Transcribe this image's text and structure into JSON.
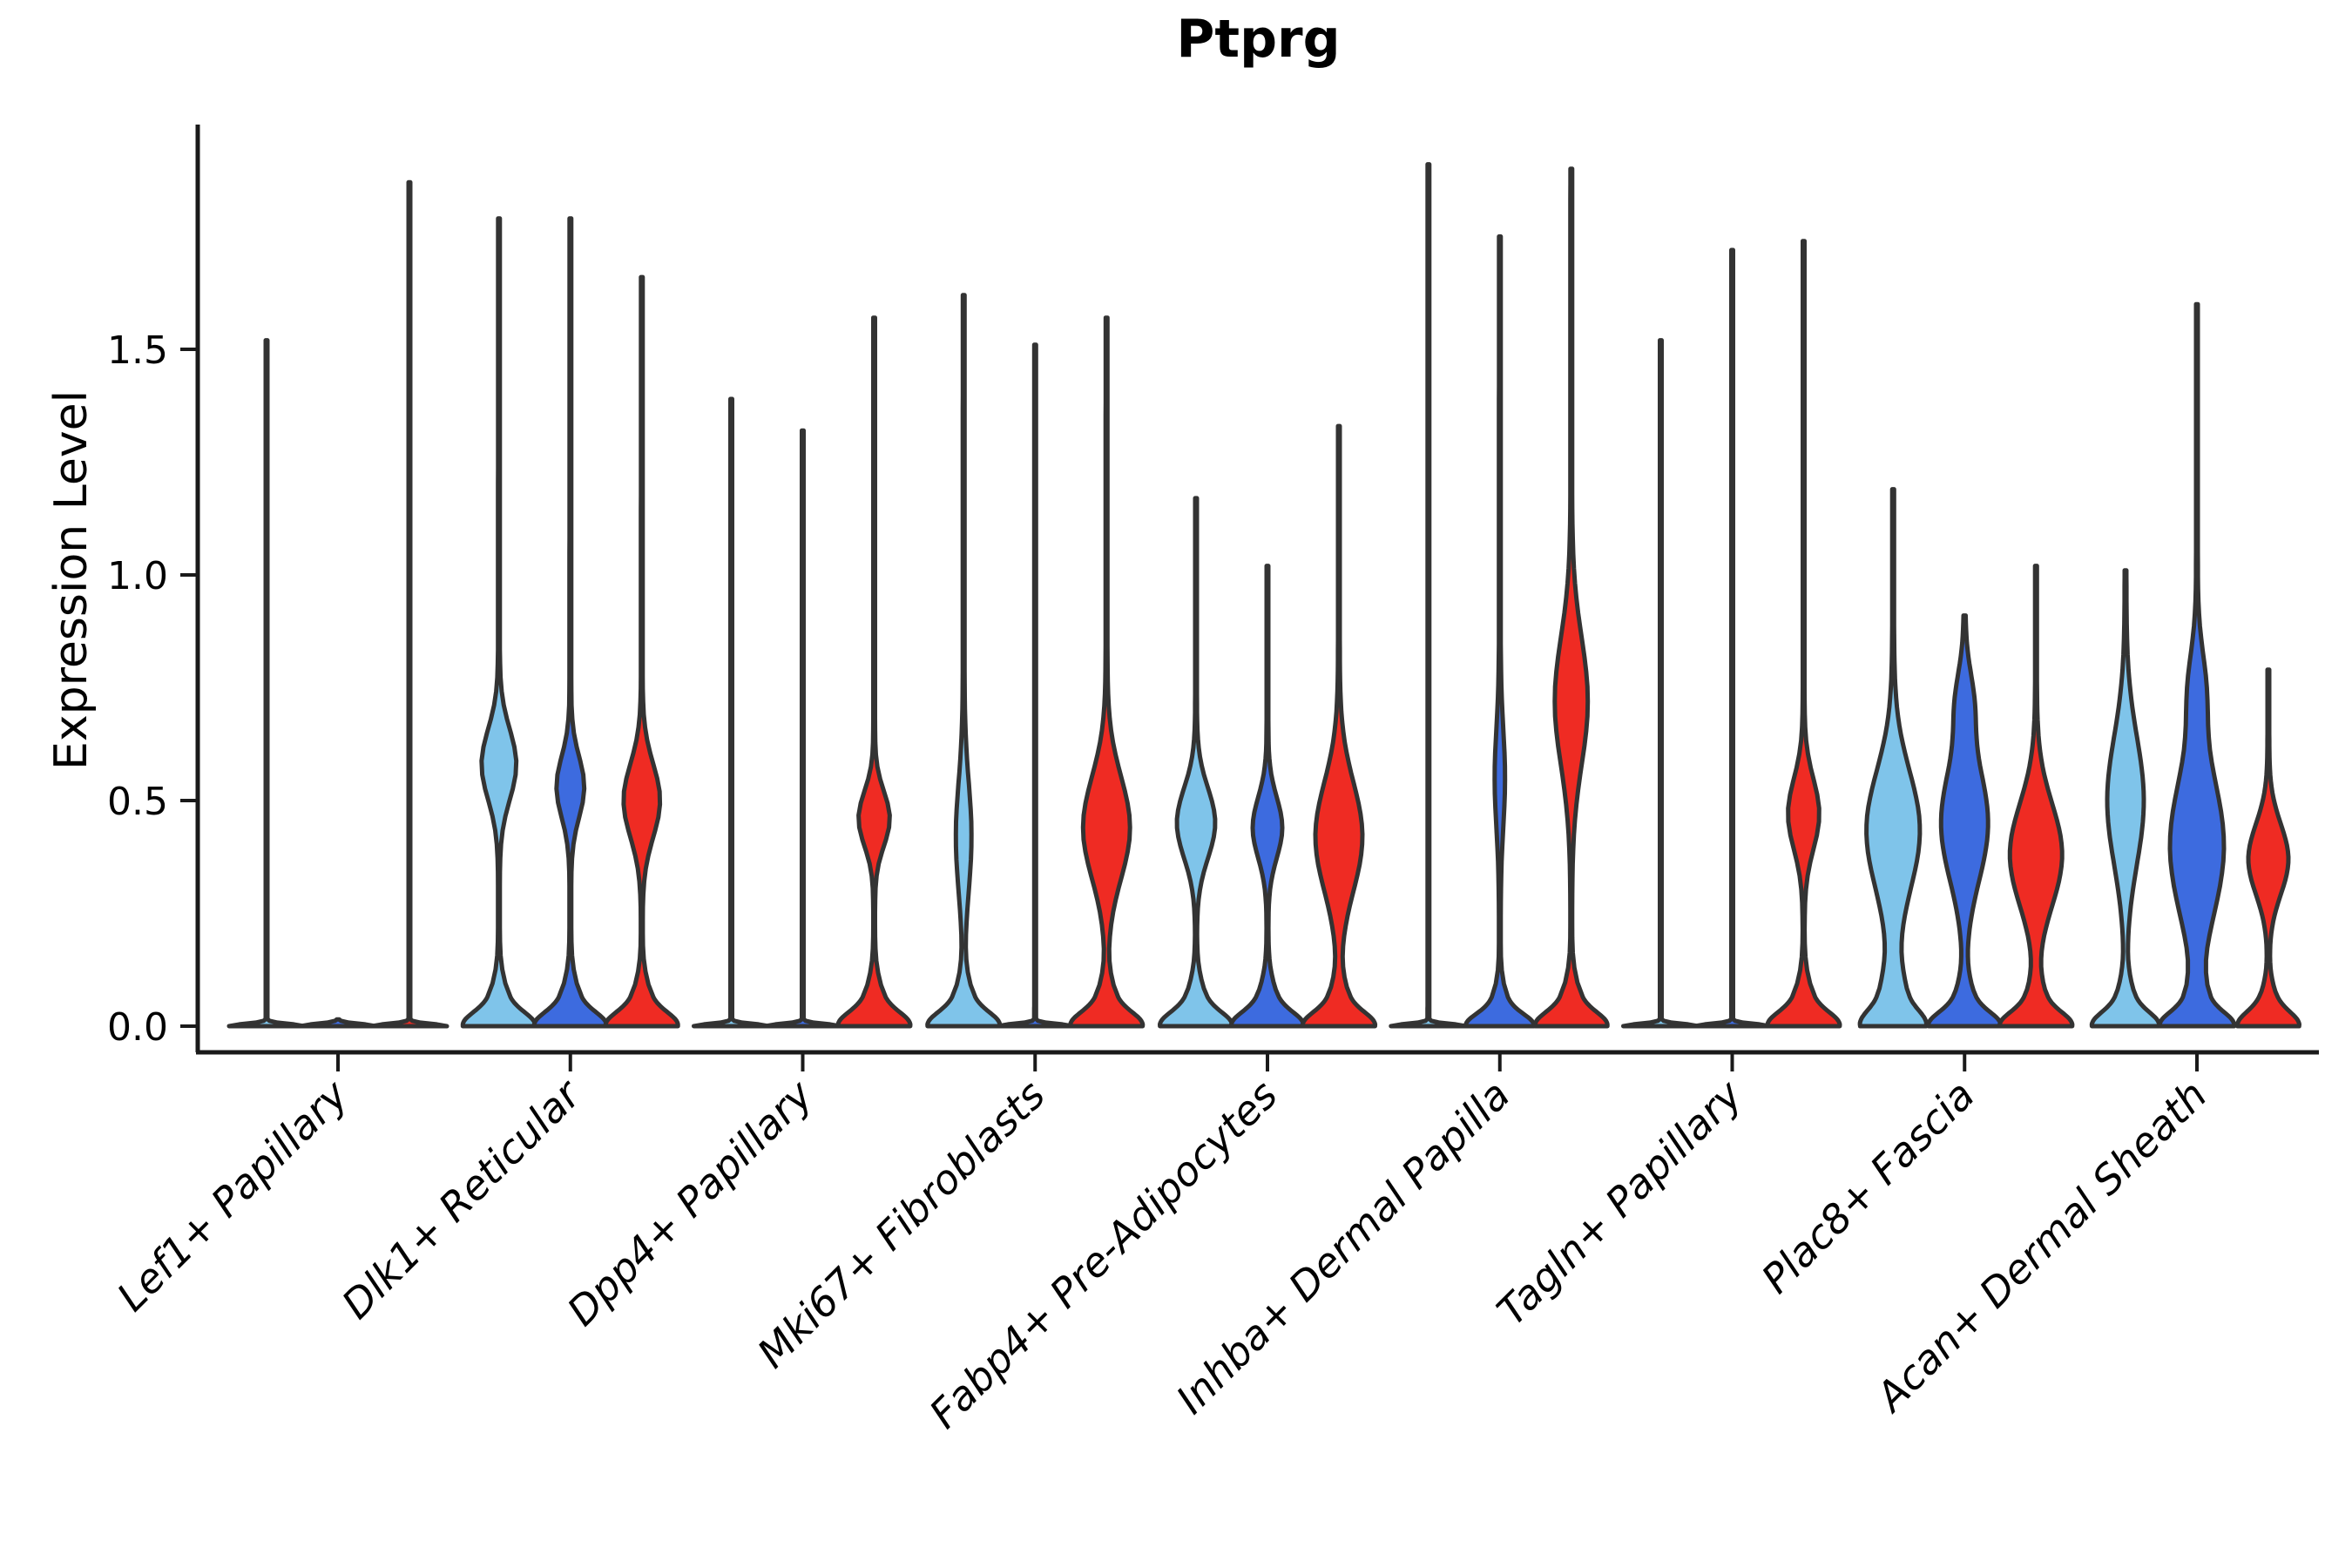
{
  "chart_data": {
    "type": "violin",
    "title": "Ptprg",
    "ylabel": "Expression Level",
    "xlabel": "",
    "grid": false,
    "legend": "none",
    "ylim": [
      -0.06,
      2.0
    ],
    "yticks": [
      0.0,
      0.5,
      1.0,
      1.5
    ],
    "ytick_labels": [
      "0.0",
      "0.5",
      "1.0",
      "1.5"
    ],
    "categories": [
      "Lef1+ Papillary",
      "Dlk1+ Reticular",
      "Dpp4+ Papillary",
      "Mki67+ Fibroblasts",
      "Fabp4+ Pre-Adipocytes",
      "Inhba+ Dermal Papilla",
      "Tagln+ Papillary",
      "Plac8+ Fascia",
      "Acan+ Dermal Sheath"
    ],
    "series_order": [
      "light_blue",
      "dark_blue",
      "red"
    ],
    "colors": {
      "light_blue": "#7FC4EA",
      "dark_blue": "#3D6BDF",
      "red": "#EF2B23"
    },
    "outline_color": "#333333",
    "axis_color": "#1a1a1a",
    "groups": [
      {
        "label": "Lef1+ Papillary",
        "violins": [
          {
            "color": "light_blue",
            "max": 1.52,
            "bumps": [
              [
                0,
                0.007,
                42
              ]
            ]
          },
          {
            "color": "dark_blue",
            "max": 0.015,
            "bumps": [
              [
                0,
                0.007,
                42
              ]
            ]
          },
          {
            "color": "red",
            "max": 1.87,
            "bumps": [
              [
                0,
                0.007,
                42
              ]
            ]
          }
        ]
      },
      {
        "label": "Dlk1+ Reticular",
        "violins": [
          {
            "color": "light_blue",
            "max": 1.79,
            "bumps": [
              [
                0,
                0.04,
                30
              ],
              [
                0.03,
                0.08,
                12
              ],
              [
                0.58,
                0.11,
                19
              ]
            ]
          },
          {
            "color": "dark_blue",
            "max": 1.79,
            "bumps": [
              [
                0,
                0.04,
                30
              ],
              [
                0.03,
                0.08,
                12
              ],
              [
                0.53,
                0.095,
                15
              ]
            ]
          },
          {
            "color": "red",
            "max": 1.66,
            "bumps": [
              [
                0,
                0.04,
                30
              ],
              [
                0.03,
                0.08,
                12
              ],
              [
                0.5,
                0.115,
                20
              ]
            ]
          }
        ]
      },
      {
        "label": "Dpp4+ Papillary",
        "violins": [
          {
            "color": "light_blue",
            "max": 1.39,
            "bumps": [
              [
                0,
                0.007,
                42
              ]
            ]
          },
          {
            "color": "dark_blue",
            "max": 1.32,
            "bumps": [
              [
                0,
                0.007,
                42
              ]
            ]
          },
          {
            "color": "red",
            "max": 1.57,
            "bumps": [
              [
                0,
                0.04,
                30
              ],
              [
                0.03,
                0.08,
                12
              ],
              [
                0.46,
                0.085,
                17
              ]
            ]
          }
        ]
      },
      {
        "label": "Mki67+ Fibroblasts",
        "violins": [
          {
            "color": "light_blue",
            "max": 1.62,
            "bumps": [
              [
                0,
                0.04,
                30
              ],
              [
                0.03,
                0.08,
                12
              ],
              [
                0.42,
                0.17,
                8
              ]
            ]
          },
          {
            "color": "dark_blue",
            "max": 1.51,
            "bumps": [
              [
                0,
                0.007,
                42
              ]
            ]
          },
          {
            "color": "red",
            "max": 1.57,
            "bumps": [
              [
                0,
                0.04,
                30
              ],
              [
                0.03,
                0.08,
                12
              ],
              [
                0.44,
                0.16,
                26
              ]
            ]
          }
        ]
      },
      {
        "label": "Fabp4+ Pre-Adipocytes",
        "violins": [
          {
            "color": "light_blue",
            "max": 1.17,
            "bumps": [
              [
                0,
                0.04,
                30
              ],
              [
                0.03,
                0.08,
                12
              ],
              [
                0.45,
                0.11,
                21
              ]
            ]
          },
          {
            "color": "dark_blue",
            "max": 1.02,
            "bumps": [
              [
                0,
                0.04,
                30
              ],
              [
                0.03,
                0.08,
                12
              ],
              [
                0.44,
                0.095,
                16
              ]
            ]
          },
          {
            "color": "red",
            "max": 1.33,
            "bumps": [
              [
                0,
                0.04,
                30
              ],
              [
                0.03,
                0.08,
                12
              ],
              [
                0.42,
                0.17,
                26
              ]
            ]
          }
        ]
      },
      {
        "label": "Inhba+ Dermal Papilla",
        "violins": [
          {
            "color": "light_blue",
            "max": 1.91,
            "bumps": [
              [
                0,
                0.007,
                42
              ]
            ]
          },
          {
            "color": "dark_blue",
            "max": 1.75,
            "bumps": [
              [
                0,
                0.035,
                28
              ],
              [
                0.02,
                0.07,
                11
              ],
              [
                0.55,
                0.15,
                5
              ]
            ]
          },
          {
            "color": "red",
            "max": 1.9,
            "bumps": [
              [
                0,
                0.04,
                30
              ],
              [
                0.03,
                0.08,
                12
              ],
              [
                0.72,
                0.2,
                18
              ]
            ]
          }
        ]
      },
      {
        "label": "Tagln+ Papillary",
        "violins": [
          {
            "color": "light_blue",
            "max": 1.52,
            "bumps": [
              [
                0,
                0.007,
                42
              ]
            ]
          },
          {
            "color": "dark_blue",
            "max": 1.72,
            "bumps": [
              [
                0,
                0.007,
                42
              ]
            ]
          },
          {
            "color": "red",
            "max": 1.74,
            "bumps": [
              [
                0,
                0.04,
                30
              ],
              [
                0.03,
                0.08,
                12
              ],
              [
                0.47,
                0.11,
                17
              ]
            ]
          }
        ]
      },
      {
        "label": "Plac8+ Fascia",
        "violins": [
          {
            "color": "light_blue",
            "max": 1.19,
            "bumps": [
              [
                0,
                0.045,
                26
              ],
              [
                0.05,
                0.09,
                12
              ],
              [
                0.44,
                0.18,
                27
              ],
              [
                0.25,
                0.3,
                4
              ]
            ]
          },
          {
            "color": "dark_blue",
            "max": 0.91,
            "bumps": [
              [
                0,
                0.04,
                30
              ],
              [
                0.03,
                0.08,
                12
              ],
              [
                0.45,
                0.18,
                26
              ],
              [
                0.72,
                0.1,
                8
              ]
            ]
          },
          {
            "color": "red",
            "max": 1.02,
            "bumps": [
              [
                0,
                0.04,
                30
              ],
              [
                0.03,
                0.08,
                12
              ],
              [
                0.38,
                0.16,
                29
              ]
            ]
          }
        ]
      },
      {
        "label": "Acan+ Dermal Sheath",
        "violins": [
          {
            "color": "light_blue",
            "max": 1.01,
            "bumps": [
              [
                0,
                0.04,
                28
              ],
              [
                0.03,
                0.08,
                11
              ],
              [
                0.5,
                0.2,
                20
              ]
            ]
          },
          {
            "color": "dark_blue",
            "max": 1.6,
            "bumps": [
              [
                0,
                0.04,
                30
              ],
              [
                0.03,
                0.08,
                12
              ],
              [
                0.4,
                0.22,
                30
              ],
              [
                0.75,
                0.12,
                8
              ]
            ]
          },
          {
            "color": "red",
            "max": 0.79,
            "bumps": [
              [
                0,
                0.04,
                26
              ],
              [
                0.03,
                0.07,
                10
              ],
              [
                0.37,
                0.11,
                22
              ]
            ]
          }
        ]
      }
    ]
  }
}
